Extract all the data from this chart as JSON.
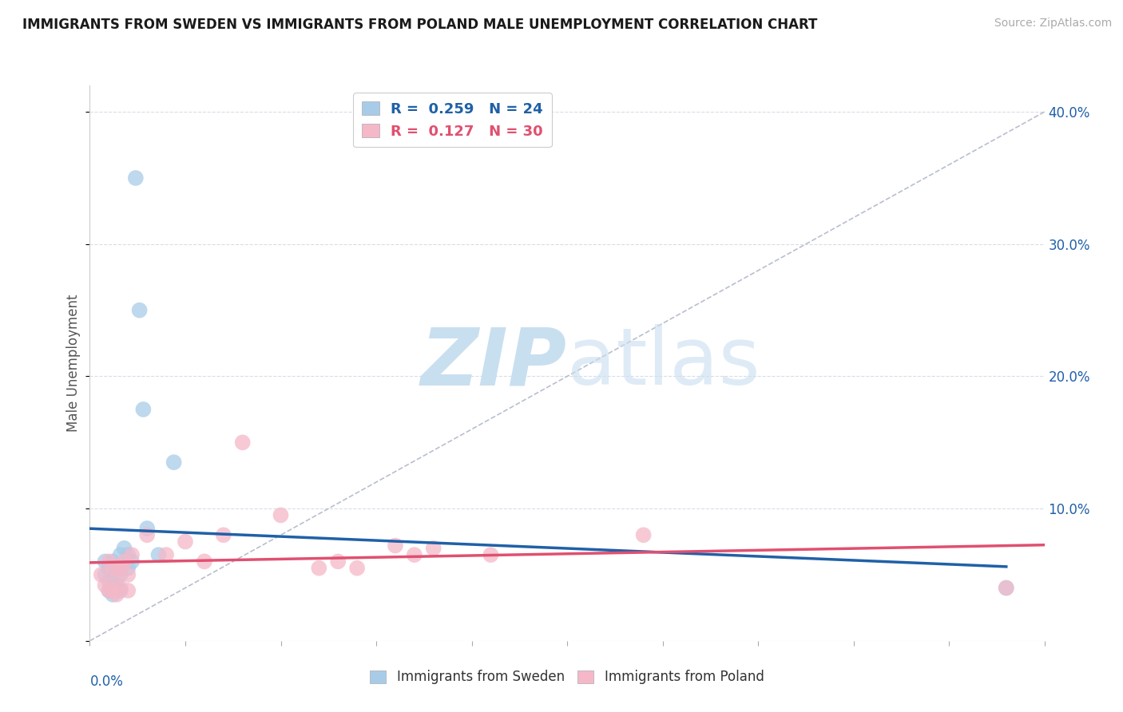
{
  "title": "IMMIGRANTS FROM SWEDEN VS IMMIGRANTS FROM POLAND MALE UNEMPLOYMENT CORRELATION CHART",
  "source": "Source: ZipAtlas.com",
  "ylabel": "Male Unemployment",
  "xlim": [
    0.0,
    0.25
  ],
  "ylim": [
    0.0,
    0.42
  ],
  "yticks": [
    0.0,
    0.1,
    0.2,
    0.3,
    0.4
  ],
  "sweden_R": 0.259,
  "sweden_N": 24,
  "poland_R": 0.127,
  "poland_N": 30,
  "sweden_color": "#a8cce8",
  "poland_color": "#f5b8c8",
  "sweden_line_color": "#2060a8",
  "poland_line_color": "#e05070",
  "ref_line_color": "#b0b8c8",
  "watermark_color": "#c8dff0",
  "background_color": "#ffffff",
  "grid_color": "#d8dde8",
  "sweden_x": [
    0.004,
    0.004,
    0.005,
    0.005,
    0.005,
    0.006,
    0.006,
    0.006,
    0.007,
    0.007,
    0.008,
    0.008,
    0.008,
    0.009,
    0.01,
    0.01,
    0.011,
    0.012,
    0.013,
    0.014,
    0.015,
    0.018,
    0.022,
    0.24
  ],
  "sweden_y": [
    0.06,
    0.05,
    0.055,
    0.045,
    0.038,
    0.06,
    0.04,
    0.035,
    0.055,
    0.042,
    0.065,
    0.05,
    0.038,
    0.07,
    0.065,
    0.055,
    0.06,
    0.35,
    0.25,
    0.175,
    0.085,
    0.065,
    0.135,
    0.04
  ],
  "poland_x": [
    0.003,
    0.004,
    0.005,
    0.005,
    0.006,
    0.006,
    0.007,
    0.007,
    0.008,
    0.008,
    0.009,
    0.01,
    0.01,
    0.011,
    0.015,
    0.02,
    0.025,
    0.03,
    0.035,
    0.04,
    0.05,
    0.06,
    0.065,
    0.07,
    0.08,
    0.085,
    0.09,
    0.105,
    0.145,
    0.24
  ],
  "poland_y": [
    0.05,
    0.042,
    0.06,
    0.038,
    0.055,
    0.038,
    0.048,
    0.035,
    0.055,
    0.04,
    0.06,
    0.05,
    0.038,
    0.065,
    0.08,
    0.065,
    0.075,
    0.06,
    0.08,
    0.15,
    0.095,
    0.055,
    0.06,
    0.055,
    0.072,
    0.065,
    0.07,
    0.065,
    0.08,
    0.04
  ]
}
